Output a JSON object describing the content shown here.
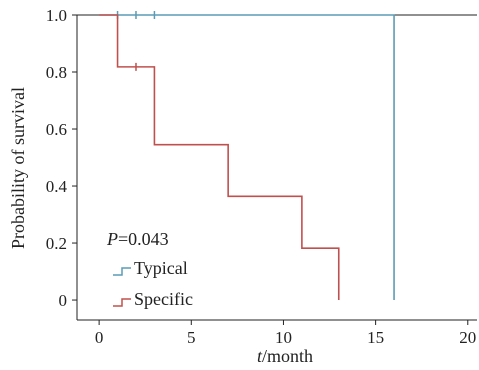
{
  "chart_data": {
    "type": "line",
    "step": true,
    "xlabel_italic": "t",
    "xlabel_rest": "/month",
    "ylabel": "Probability of survival",
    "xlim": [
      -1.2,
      20.5
    ],
    "ylim": [
      -0.07,
      1.0
    ],
    "x_ticks": [
      0,
      5,
      10,
      15,
      20
    ],
    "x_tick_labels": [
      "0",
      "5",
      "10",
      "15",
      "20"
    ],
    "y_ticks": [
      0,
      0.2,
      0.4,
      0.6,
      0.8,
      1.0
    ],
    "y_tick_labels": [
      "0",
      "0.2",
      "0.4",
      "0.6",
      "0.8",
      "1.0"
    ],
    "grid": false,
    "legend_position": "bottom-left",
    "annotation_italic": "P",
    "annotation_rest": "=0.043",
    "series": [
      {
        "name": "Typical",
        "color": "#5b9bb5",
        "points": [
          [
            0,
            1.0
          ],
          [
            16,
            1.0
          ],
          [
            16,
            0.0
          ]
        ],
        "censored": [
          [
            1,
            1.0
          ],
          [
            2,
            1.0
          ],
          [
            3,
            1.0
          ]
        ]
      },
      {
        "name": "Specific",
        "color": "#c0504d",
        "points": [
          [
            0,
            1.0
          ],
          [
            1,
            1.0
          ],
          [
            1,
            0.818
          ],
          [
            3,
            0.818
          ],
          [
            3,
            0.545
          ],
          [
            7,
            0.545
          ],
          [
            7,
            0.364
          ],
          [
            11,
            0.364
          ],
          [
            11,
            0.182
          ],
          [
            13,
            0.182
          ],
          [
            13,
            0.0
          ]
        ],
        "censored": [
          [
            2,
            0.818
          ]
        ]
      }
    ]
  }
}
